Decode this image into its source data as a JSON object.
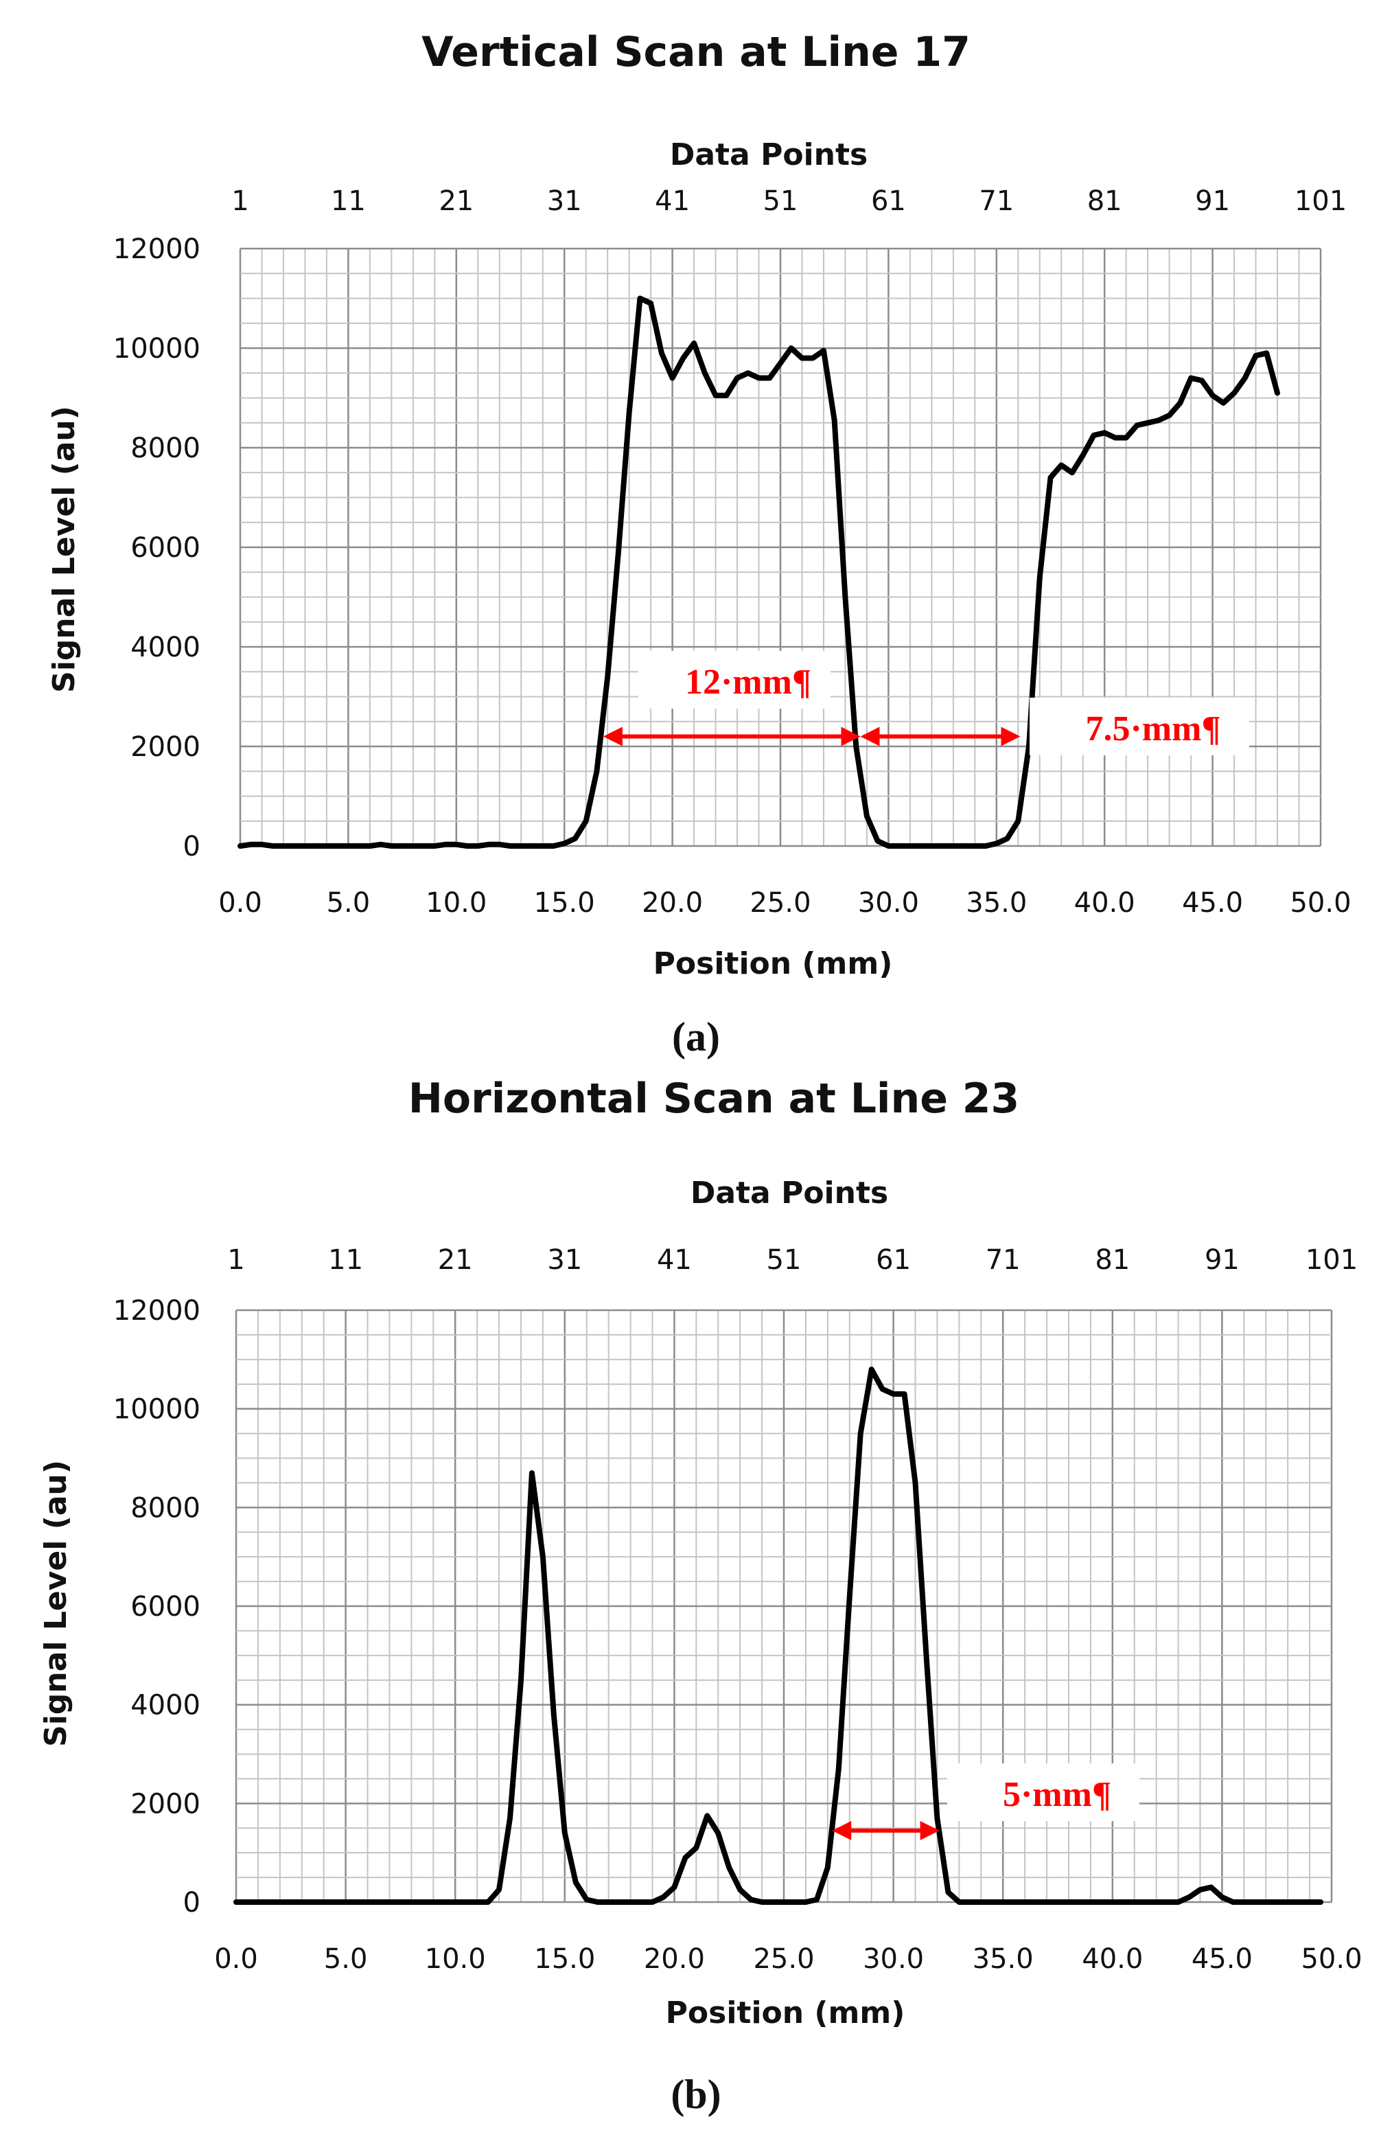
{
  "chart_data": [
    {
      "type": "line",
      "title": "Vertical Scan at Line 17",
      "panel_label": "(a)",
      "xlabel": "Position (mm)",
      "x2label": "Data Points",
      "ylabel": "Signal Level (au)",
      "xlim": [
        0,
        50
      ],
      "ylim": [
        0,
        12000
      ],
      "x_ticks": [
        "0.0",
        "5.0",
        "10.0",
        "15.0",
        "20.0",
        "25.0",
        "30.0",
        "35.0",
        "40.0",
        "45.0",
        "50.0"
      ],
      "x2_ticks": [
        "1",
        "11",
        "21",
        "31",
        "41",
        "51",
        "61",
        "71",
        "81",
        "91",
        "101"
      ],
      "y_ticks": [
        "0",
        "2000",
        "4000",
        "6000",
        "8000",
        "10000",
        "12000"
      ],
      "grid": true,
      "series": [
        {
          "x": [
            0,
            0.5,
            1.0,
            1.5,
            2.0,
            2.5,
            3.0,
            3.5,
            4.0,
            4.5,
            5.0,
            5.5,
            6.0,
            6.5,
            7.0,
            7.5,
            8.0,
            8.5,
            9.0,
            9.5,
            10.0,
            10.5,
            11.0,
            11.5,
            12.0,
            12.5,
            13.0,
            13.5,
            14.0,
            14.5,
            15.0,
            15.5,
            16.0,
            16.5,
            17.0,
            17.5,
            18.0,
            18.5,
            19.0,
            19.5,
            20.0,
            20.5,
            21.0,
            21.5,
            22.0,
            22.5,
            23.0,
            23.5,
            24.0,
            24.5,
            25.0,
            25.5,
            26.0,
            26.5,
            27.0,
            27.5,
            28.0,
            28.5,
            29.0,
            29.5,
            30.0,
            30.5,
            31.0,
            31.5,
            32.0,
            32.5,
            33.0,
            33.5,
            34.0,
            34.5,
            35.0,
            35.5,
            36.0,
            36.5,
            37.0,
            37.5,
            38.0,
            38.5,
            39.0,
            39.5,
            40.0,
            40.5,
            41.0,
            41.5,
            42.0,
            42.5,
            43.0,
            43.5,
            44.0,
            44.5,
            45.0,
            45.5,
            46.0,
            46.5,
            47.0,
            47.5,
            48.0
          ],
          "values": [
            0,
            30,
            30,
            0,
            0,
            0,
            0,
            0,
            0,
            0,
            0,
            0,
            0,
            30,
            0,
            0,
            0,
            0,
            0,
            30,
            30,
            0,
            0,
            30,
            30,
            0,
            0,
            0,
            0,
            0,
            50,
            150,
            500,
            1500,
            3400,
            5900,
            8700,
            11000,
            10900,
            9900,
            9400,
            9800,
            10100,
            9500,
            9050,
            9050,
            9400,
            9500,
            9400,
            9400,
            9700,
            10000,
            9800,
            9800,
            9950,
            8550,
            5000,
            2000,
            600,
            100,
            0,
            0,
            0,
            0,
            0,
            0,
            0,
            0,
            0,
            0,
            50,
            150,
            500,
            2000,
            5400,
            7400,
            7650,
            7500,
            7850,
            8250,
            8300,
            8200,
            8200,
            8450,
            8500,
            8550,
            8650,
            8900,
            9400,
            9350,
            9050,
            8900,
            9100,
            9400,
            9850,
            9900,
            9100
          ]
        }
      ],
      "annotations": [
        {
          "text": "12·mm¶",
          "x_from": 16.8,
          "x_to": 28.7,
          "y": 2200
        },
        {
          "text": "7.5·mm¶",
          "x_from": 28.7,
          "x_to": 36.1,
          "y": 2200
        }
      ]
    },
    {
      "type": "line",
      "title": "Horizontal Scan at Line 23",
      "panel_label": "(b)",
      "xlabel": "Position (mm)",
      "x2label": "Data Points",
      "ylabel": "Signal Level (au)",
      "xlim": [
        0,
        50
      ],
      "ylim": [
        0,
        12000
      ],
      "x_ticks": [
        "0.0",
        "5.0",
        "10.0",
        "15.0",
        "20.0",
        "25.0",
        "30.0",
        "35.0",
        "40.0",
        "45.0",
        "50.0"
      ],
      "x2_ticks": [
        "1",
        "11",
        "21",
        "31",
        "41",
        "51",
        "61",
        "71",
        "81",
        "91",
        "101"
      ],
      "y_ticks": [
        "0",
        "2000",
        "4000",
        "6000",
        "8000",
        "10000",
        "12000"
      ],
      "grid": true,
      "series": [
        {
          "x": [
            0,
            11.5,
            12.0,
            12.5,
            13.0,
            13.5,
            14.0,
            14.5,
            15.0,
            15.5,
            16.0,
            16.5,
            19.0,
            19.5,
            20.0,
            20.5,
            21.0,
            21.5,
            22.0,
            22.5,
            23.0,
            23.5,
            24.0,
            24.5,
            25.0,
            26.0,
            26.5,
            27.0,
            27.5,
            28.0,
            28.5,
            29.0,
            29.5,
            30.0,
            30.5,
            31.0,
            31.5,
            32.0,
            32.5,
            33.0,
            43.0,
            43.5,
            44.0,
            44.5,
            45.0,
            45.5,
            49.5
          ],
          "values": [
            0,
            0,
            250,
            1700,
            4500,
            8700,
            7000,
            3800,
            1400,
            400,
            50,
            0,
            0,
            100,
            300,
            900,
            1100,
            1750,
            1400,
            700,
            250,
            50,
            0,
            0,
            0,
            0,
            50,
            700,
            2700,
            6200,
            9500,
            10800,
            10400,
            10300,
            10300,
            8500,
            5000,
            1700,
            200,
            0,
            0,
            100,
            250,
            300,
            100,
            0,
            0
          ]
        }
      ],
      "annotations": [
        {
          "text": "5·mm¶",
          "x_from": 27.2,
          "x_to": 32.1,
          "y": 1450
        }
      ]
    }
  ]
}
